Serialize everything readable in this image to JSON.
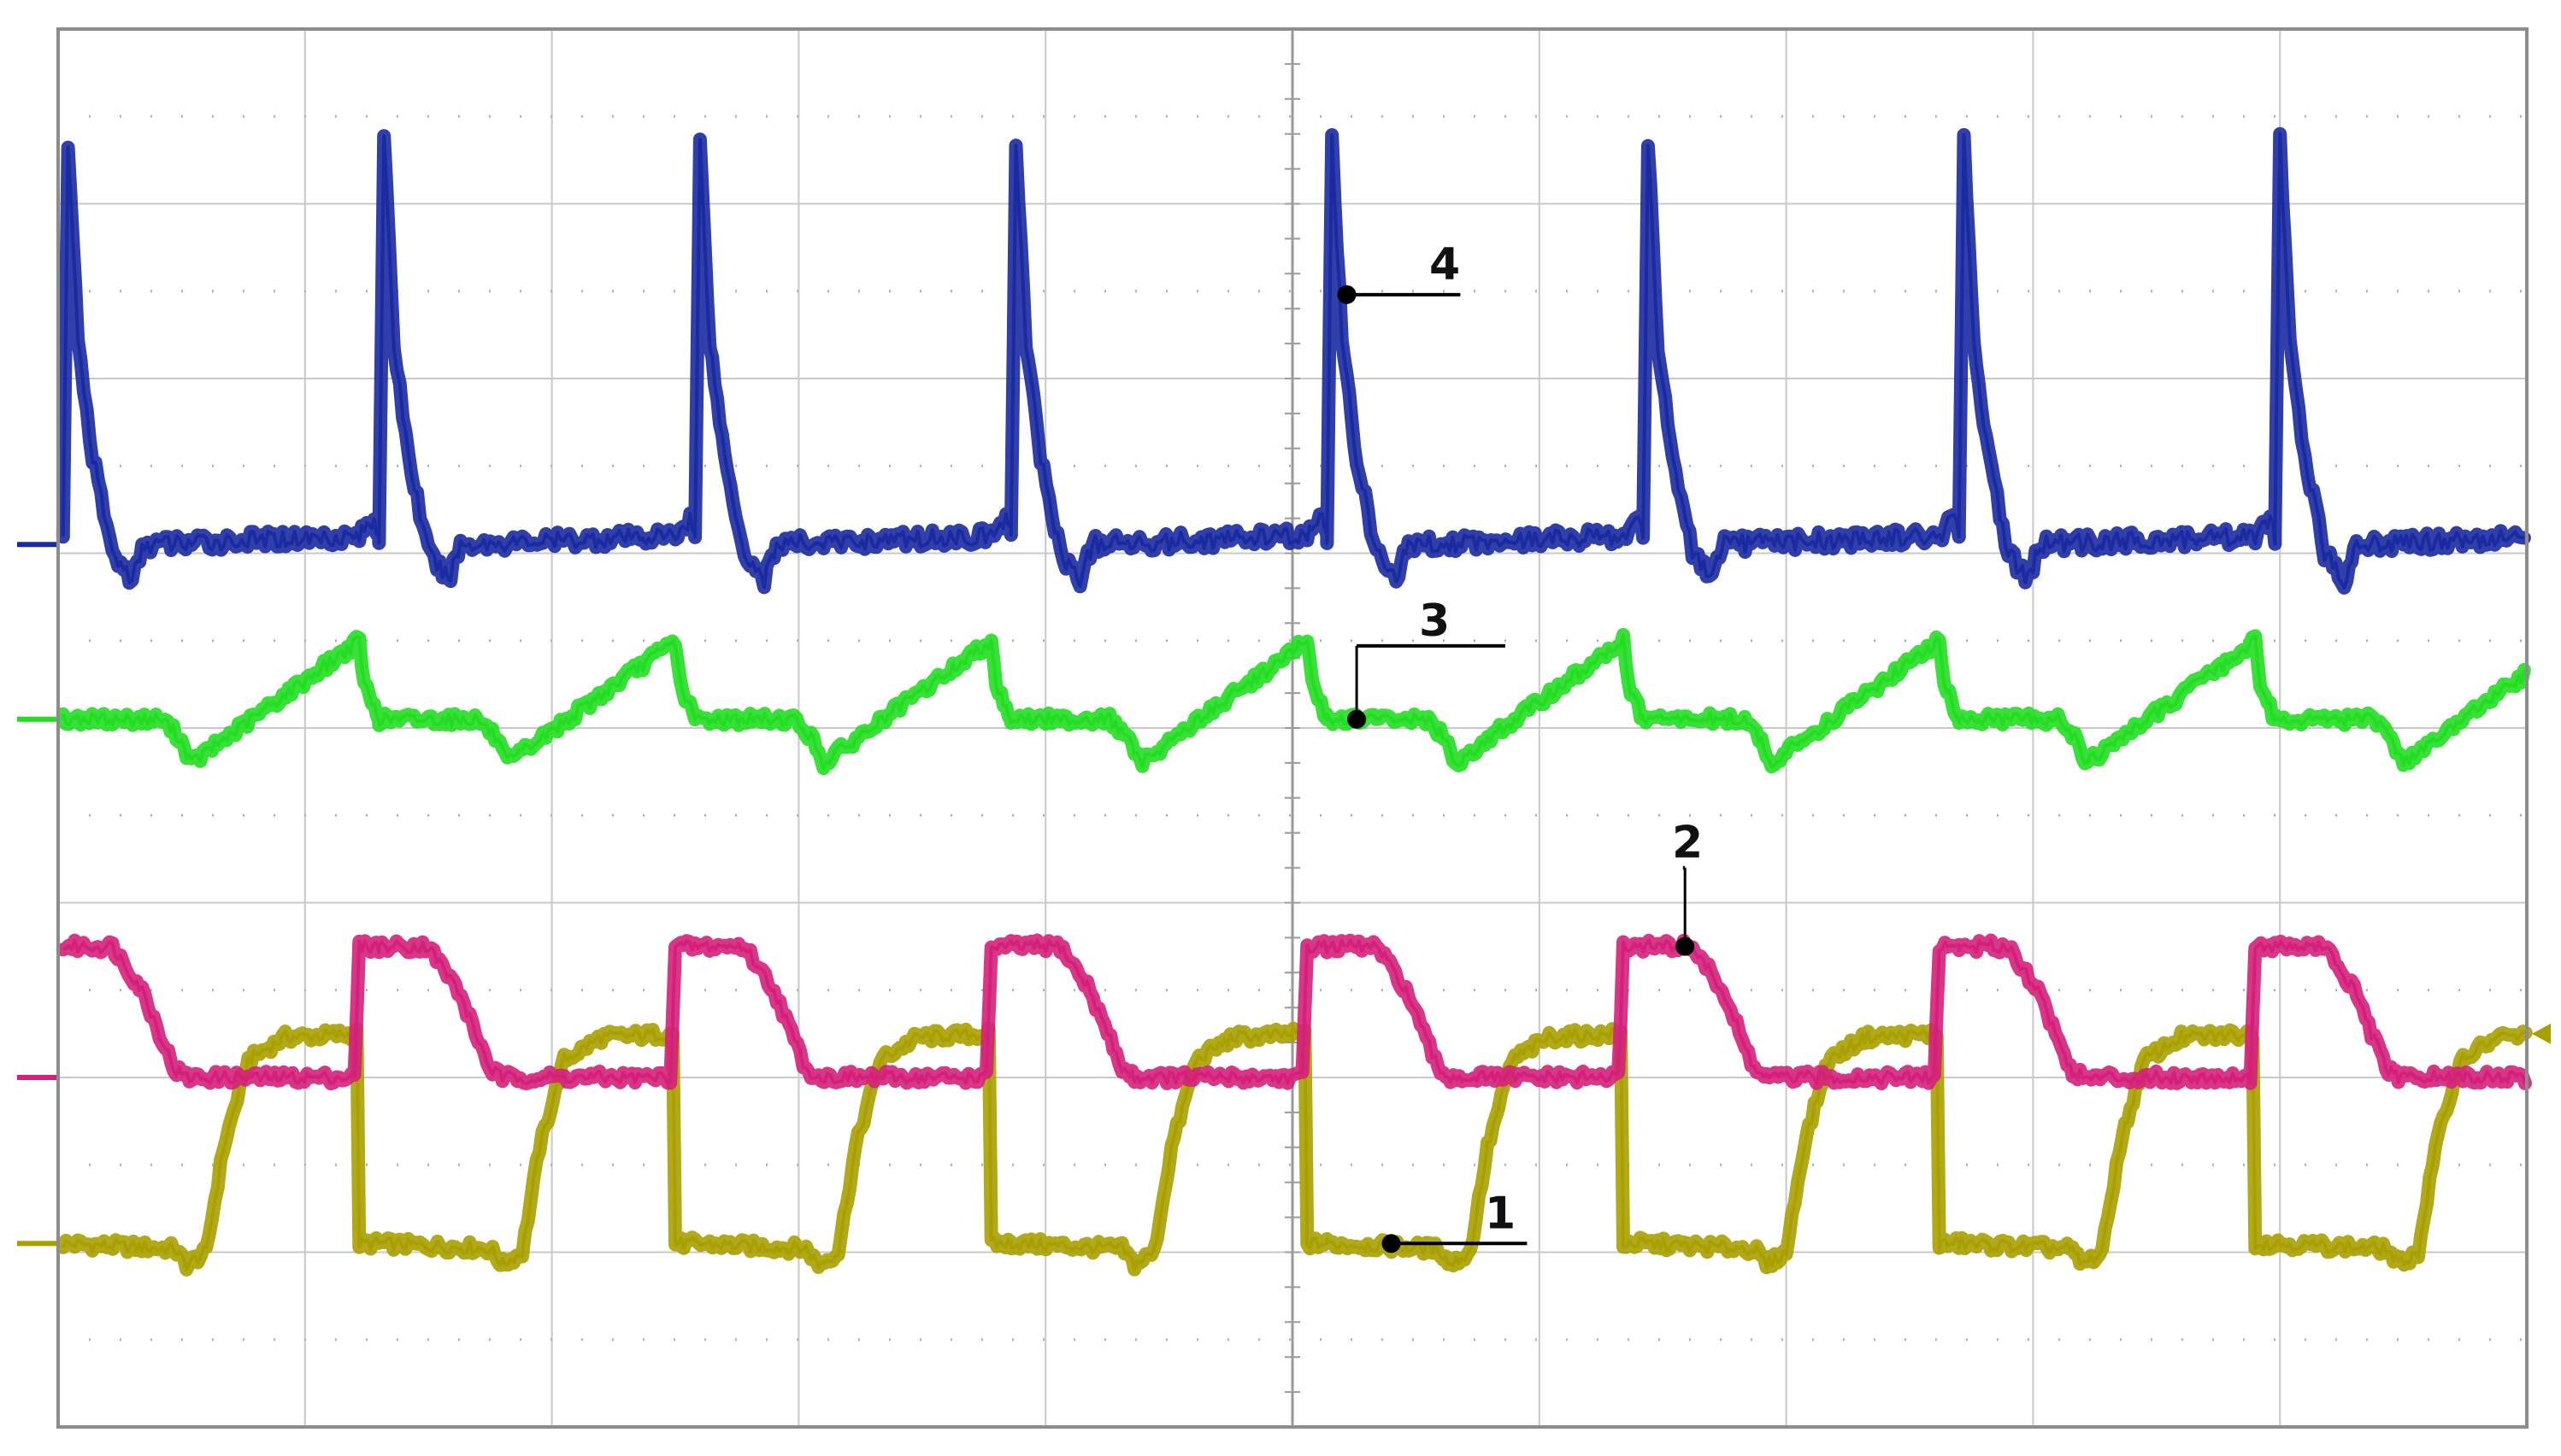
{
  "chart_data": {
    "type": "line",
    "title": "",
    "xlabel": "",
    "ylabel": "",
    "grid": true,
    "grid_divisions": {
      "x": 10,
      "y": 8
    },
    "xlim": [
      0,
      10
    ],
    "ylim": [
      0,
      8
    ],
    "period_divisions": 1.28,
    "cycle_starts": [
      0.02,
      1.3,
      2.58,
      3.86,
      5.14,
      6.42,
      7.7,
      8.98
    ],
    "series": [
      {
        "label": "1",
        "color": "#a8a000",
        "waveform": "square",
        "baseline_div": 1.05,
        "low_div": 1.05,
        "high_div": 2.25,
        "rise_offset_div": 0.62,
        "fall_offset_div": 1.2,
        "values_per_cycle": [
          [
            0.0,
            1.05
          ],
          [
            0.45,
            1.02
          ],
          [
            0.5,
            0.93
          ],
          [
            0.58,
            1.0
          ],
          [
            0.65,
            1.6
          ],
          [
            0.75,
            2.1
          ],
          [
            0.9,
            2.23
          ],
          [
            1.19,
            2.25
          ],
          [
            1.2,
            1.05
          ],
          [
            1.28,
            1.05
          ]
        ]
      },
      {
        "label": "2",
        "color": "#d4207a",
        "waveform": "square",
        "baseline_div": 2.0,
        "low_div": 2.0,
        "high_div": 2.75,
        "values_per_cycle": [
          [
            0.0,
            2.75
          ],
          [
            0.2,
            2.75
          ],
          [
            0.32,
            2.5
          ],
          [
            0.45,
            2.05
          ],
          [
            0.5,
            2.0
          ],
          [
            1.18,
            2.0
          ],
          [
            1.2,
            2.75
          ],
          [
            1.28,
            2.75
          ]
        ]
      },
      {
        "label": "3",
        "color": "#22dd22",
        "waveform": "sawtooth",
        "baseline_div": 4.05,
        "values_per_cycle": [
          [
            0.0,
            4.05
          ],
          [
            0.4,
            4.05
          ],
          [
            0.47,
            3.95
          ],
          [
            0.52,
            3.8
          ],
          [
            1.2,
            4.5
          ],
          [
            1.22,
            4.25
          ],
          [
            1.28,
            4.05
          ]
        ]
      },
      {
        "label": "4",
        "color": "#1a2aa0",
        "waveform": "spike",
        "baseline_div": 5.05,
        "values_per_cycle": [
          [
            0.0,
            5.1
          ],
          [
            0.02,
            7.35
          ],
          [
            0.06,
            6.2
          ],
          [
            0.12,
            5.55
          ],
          [
            0.2,
            5.0
          ],
          [
            0.28,
            4.85
          ],
          [
            0.33,
            5.05
          ],
          [
            1.2,
            5.1
          ],
          [
            1.26,
            5.2
          ],
          [
            1.28,
            5.1
          ]
        ]
      }
    ],
    "annotations": [
      {
        "text": "1",
        "series": "1"
      },
      {
        "text": "2",
        "series": "2"
      },
      {
        "text": "3",
        "series": "3"
      },
      {
        "text": "4",
        "series": "4"
      }
    ]
  }
}
